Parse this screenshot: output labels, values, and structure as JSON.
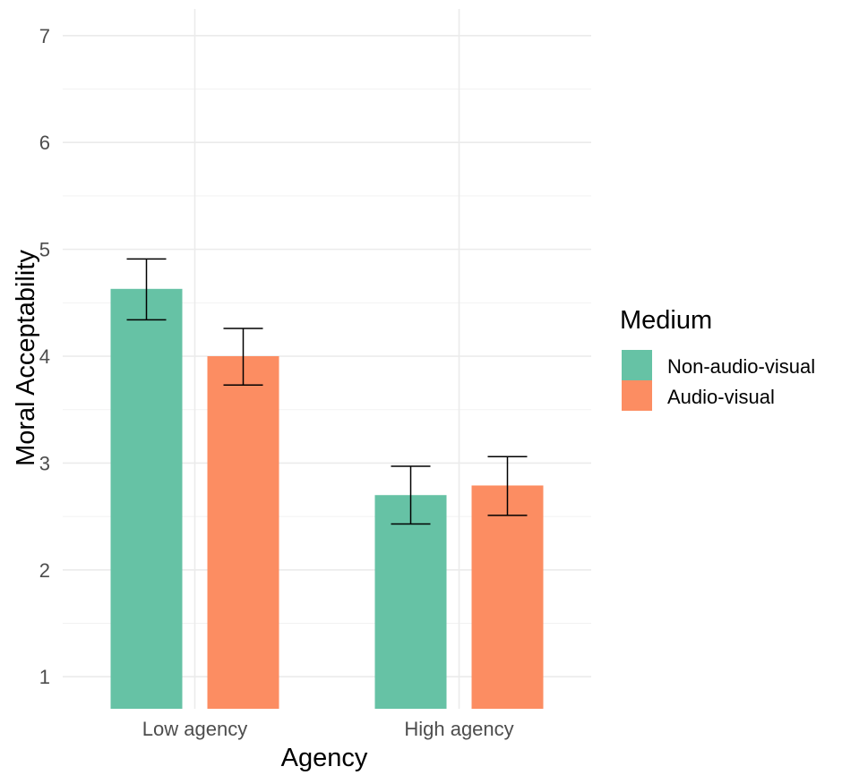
{
  "chart_data": {
    "type": "bar",
    "title": "",
    "xlabel": "Agency",
    "ylabel": "Moral Acceptability",
    "categories": [
      "Low agency",
      "High agency"
    ],
    "series": [
      {
        "name": "Non-audio-visual",
        "color": "#66c2a5",
        "values": [
          4.63,
          2.7
        ],
        "error_low": [
          4.34,
          2.43
        ],
        "error_high": [
          4.91,
          2.97
        ]
      },
      {
        "name": "Audio-visual",
        "color": "#fc8d62",
        "values": [
          4.0,
          2.79
        ],
        "error_low": [
          3.73,
          2.51
        ],
        "error_high": [
          4.26,
          3.06
        ]
      }
    ],
    "ylim": [
      0.7,
      7.25
    ],
    "yticks": [
      "1",
      "2",
      "3",
      "4",
      "5",
      "6",
      "7"
    ],
    "grid": true,
    "legend": {
      "title": "Medium",
      "position": "right"
    }
  }
}
